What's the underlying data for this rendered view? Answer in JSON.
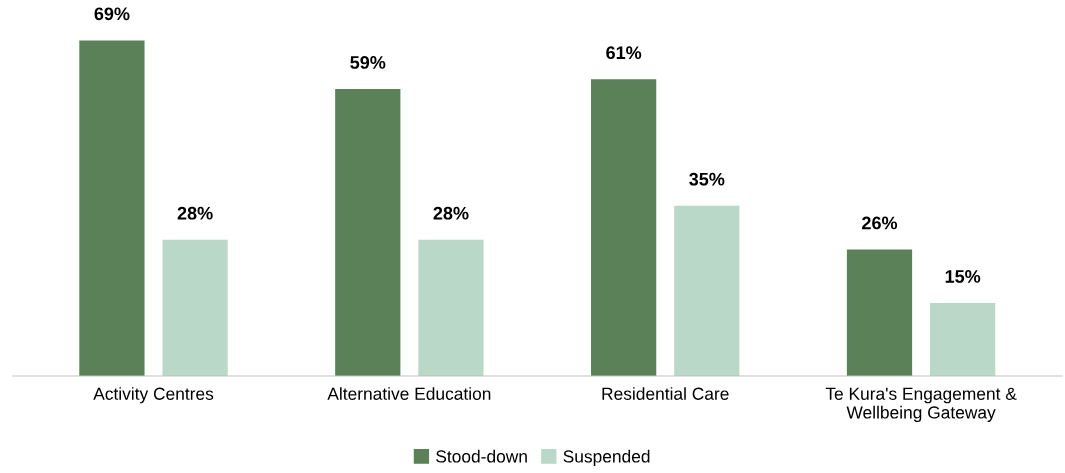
{
  "chart_data": {
    "type": "bar",
    "categories": [
      "Activity Centres",
      "Alternative Education",
      "Residential Care",
      "Te Kura's Engagement &\nWellbeing Gateway"
    ],
    "series": [
      {
        "name": "Stood-down",
        "color": "#5a8158",
        "values": [
          69,
          59,
          61,
          26
        ],
        "value_labels": [
          "69%",
          "59%",
          "61%",
          "26%"
        ]
      },
      {
        "name": "Suspended",
        "color": "#b9d8c8",
        "values": [
          28,
          28,
          35,
          15
        ],
        "value_labels": [
          "28%",
          "28%",
          "35%",
          "15%"
        ]
      }
    ],
    "legend": "bottom",
    "grid": false
  }
}
